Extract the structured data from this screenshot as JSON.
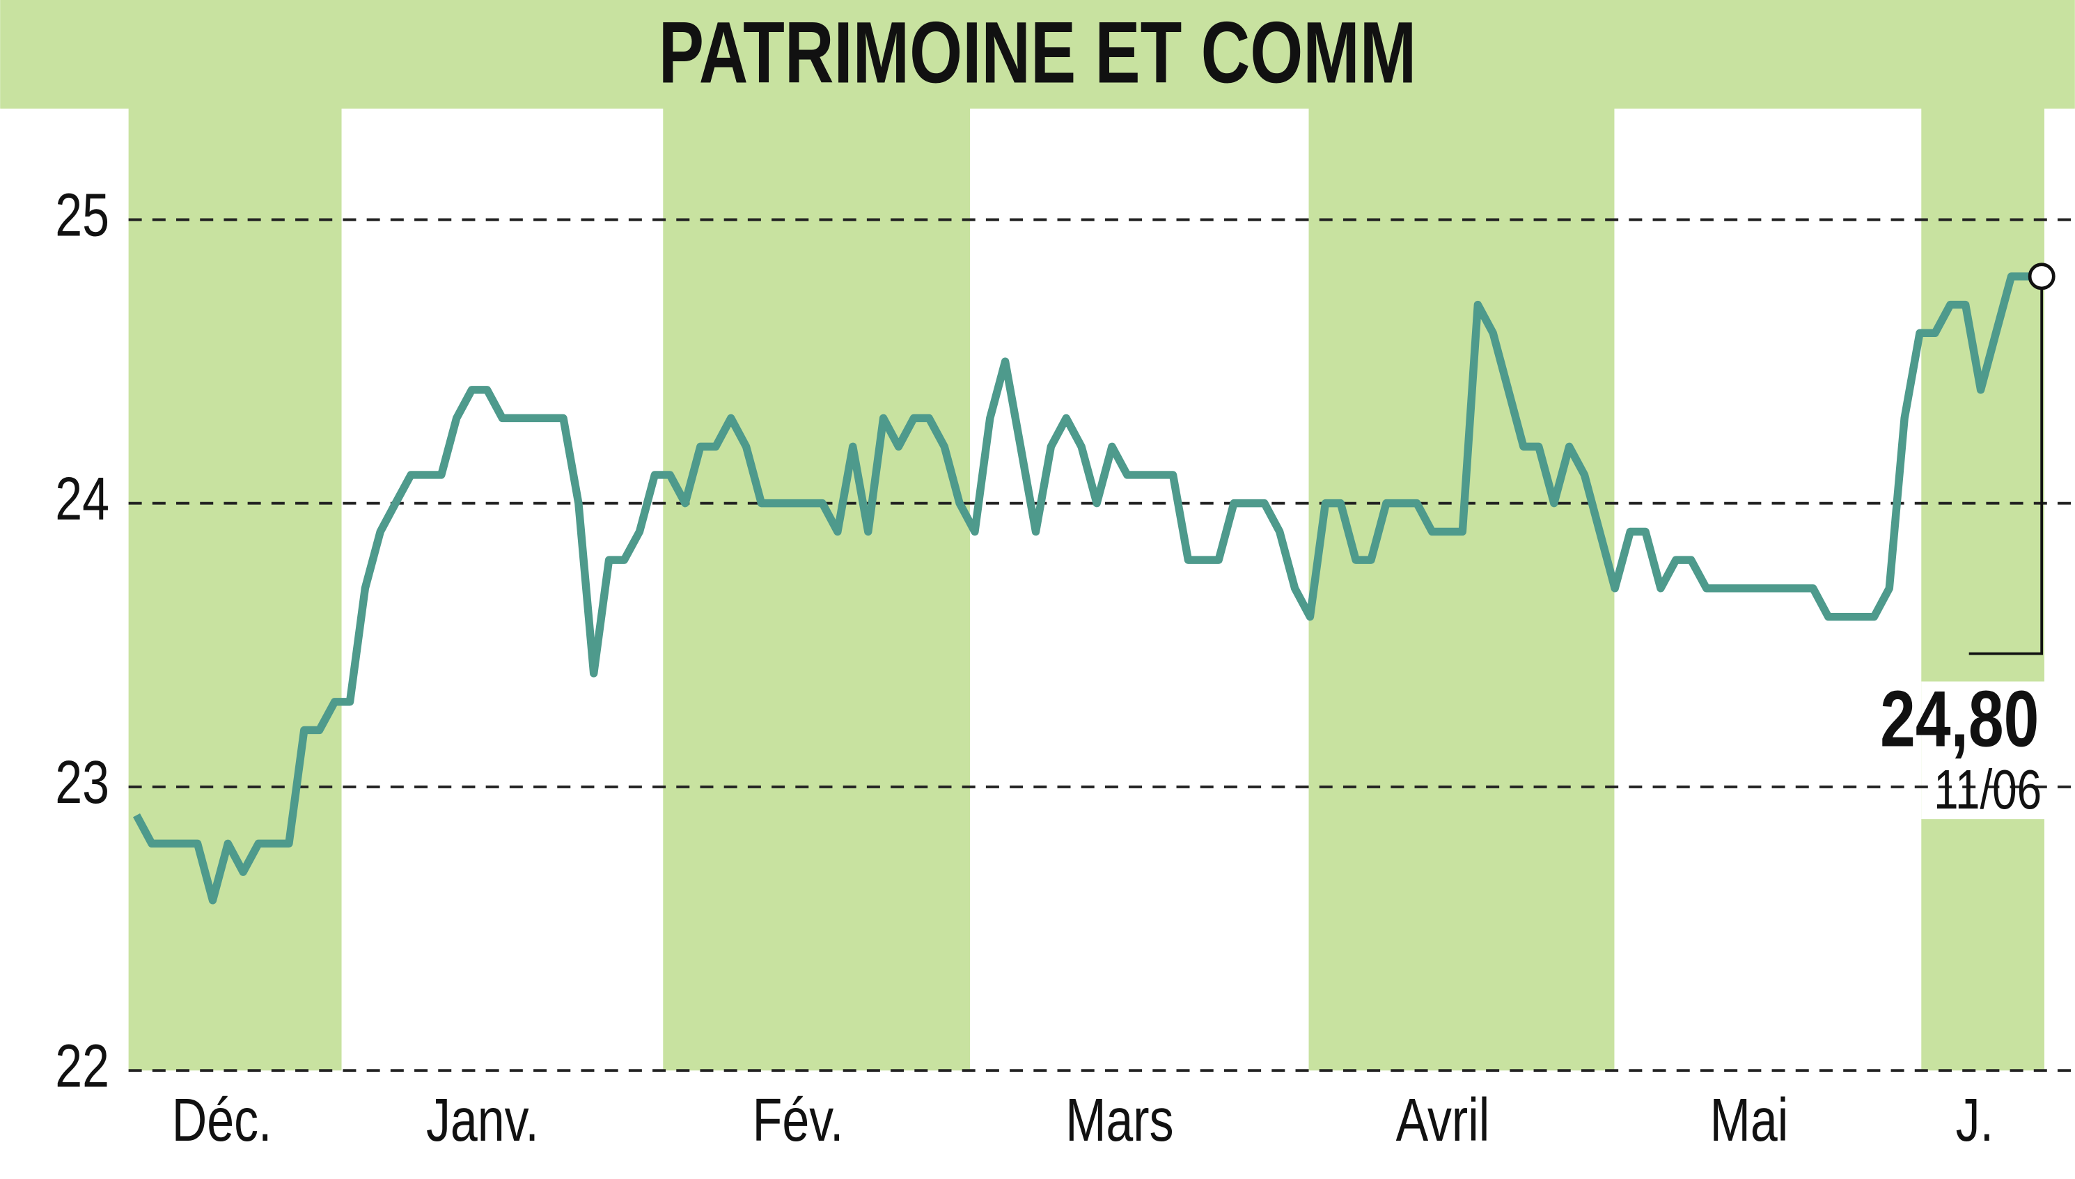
{
  "chart_data": {
    "type": "line",
    "title": "PATRIMOINE ET COMM",
    "values": [
      22.9,
      22.8,
      22.8,
      22.8,
      22.8,
      22.6,
      22.8,
      22.7,
      22.8,
      22.8,
      22.8,
      23.2,
      23.2,
      23.3,
      23.3,
      23.7,
      23.9,
      24.0,
      24.1,
      24.1,
      24.1,
      24.3,
      24.4,
      24.4,
      24.3,
      24.3,
      24.3,
      24.3,
      24.3,
      24.0,
      23.4,
      23.8,
      23.8,
      23.9,
      24.1,
      24.1,
      24.0,
      24.2,
      24.2,
      24.3,
      24.2,
      24.0,
      24.0,
      24.0,
      24.0,
      24.0,
      23.9,
      24.2,
      23.9,
      24.3,
      24.2,
      24.3,
      24.3,
      24.2,
      24.0,
      23.9,
      24.3,
      24.5,
      24.2,
      23.9,
      24.2,
      24.3,
      24.2,
      24.0,
      24.2,
      24.1,
      24.1,
      24.1,
      24.1,
      23.8,
      23.8,
      23.8,
      24.0,
      24.0,
      24.0,
      23.9,
      23.7,
      23.6,
      24.0,
      24.0,
      23.8,
      23.8,
      24.0,
      24.0,
      24.0,
      23.9,
      23.9,
      23.9,
      24.7,
      24.6,
      24.4,
      24.2,
      24.2,
      24.0,
      24.2,
      24.1,
      23.9,
      23.7,
      23.9,
      23.9,
      23.7,
      23.8,
      23.8,
      23.7,
      23.7,
      23.7,
      23.7,
      23.7,
      23.7,
      23.7,
      23.7,
      23.6,
      23.6,
      23.6,
      23.6,
      23.7,
      24.3,
      24.6,
      24.6,
      24.7,
      24.7,
      24.4,
      24.6,
      24.8,
      24.8,
      24.8
    ],
    "color": "#4e9a8c",
    "ylim": [
      22,
      25
    ],
    "yticks": [
      22,
      23,
      24,
      25
    ],
    "grid": true,
    "xticks": [
      {
        "value": 5.6,
        "label": "Déc."
      },
      {
        "value": 22.7,
        "label": "Janv."
      },
      {
        "value": 43.4,
        "label": "Fév."
      },
      {
        "value": 64.5,
        "label": "Mars"
      },
      {
        "value": 85.7,
        "label": "Avril"
      },
      {
        "value": 105.8,
        "label": "Mai"
      },
      {
        "value": 120.6,
        "label": "J."
      }
    ],
    "last_value_label": "24,80",
    "last_date": "11/06"
  }
}
